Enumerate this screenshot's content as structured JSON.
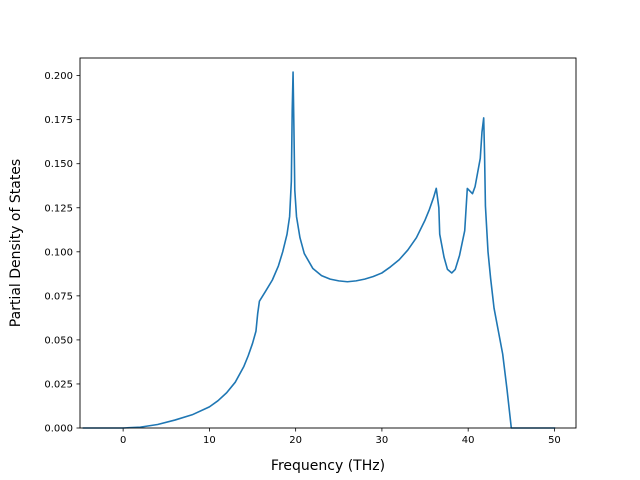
{
  "chart_data": {
    "type": "line",
    "title": "",
    "xlabel": "Frequency (THz)",
    "ylabel": "Partial Density of States",
    "xlim": [
      -5.0,
      52.5
    ],
    "ylim": [
      0.0,
      0.21
    ],
    "xticks": [
      0,
      10,
      20,
      30,
      40,
      50
    ],
    "yticks": [
      0.0,
      0.025,
      0.05,
      0.075,
      0.1,
      0.125,
      0.15,
      0.175,
      0.2
    ],
    "xtick_labels": [
      "0",
      "10",
      "20",
      "30",
      "40",
      "50"
    ],
    "ytick_labels": [
      "0.000",
      "0.025",
      "0.050",
      "0.075",
      "0.100",
      "0.125",
      "0.150",
      "0.175",
      "0.200"
    ],
    "grid": false,
    "legend": null,
    "color": "#1f77b4",
    "series": [
      {
        "x": [
          -4.6,
          -2,
          0,
          2,
          4,
          6,
          8,
          10,
          11,
          12,
          13,
          14,
          14.5,
          15,
          15.4,
          15.6,
          15.8,
          16.5,
          17.3,
          18.0,
          18.5,
          19.0,
          19.3,
          19.5,
          19.6,
          19.7,
          19.8,
          19.9,
          20.1,
          20.5,
          21.0,
          22.0,
          23.0,
          24.0,
          25.0,
          26.0,
          27.0,
          28.0,
          29.0,
          30.0,
          31.0,
          32.0,
          33.0,
          34.0,
          35.0,
          35.5,
          36.0,
          36.3,
          36.6,
          36.7,
          37.2,
          37.6,
          38.1,
          38.5,
          39.0,
          39.6,
          39.9,
          40.1,
          40.5,
          40.8,
          41.1,
          41.4,
          41.6,
          41.8,
          41.9,
          42.0,
          42.3,
          42.6,
          43.0,
          43.5,
          44.0,
          44.5,
          45.0,
          45.3,
          45.6,
          47.0,
          50.0
        ],
        "y": [
          0.0,
          0.0,
          0.0,
          0.0005,
          0.002,
          0.0045,
          0.0075,
          0.012,
          0.0155,
          0.02,
          0.026,
          0.035,
          0.041,
          0.048,
          0.055,
          0.065,
          0.072,
          0.0775,
          0.084,
          0.092,
          0.1,
          0.11,
          0.12,
          0.14,
          0.18,
          0.202,
          0.17,
          0.135,
          0.12,
          0.108,
          0.099,
          0.0905,
          0.0865,
          0.0845,
          0.0835,
          0.083,
          0.0835,
          0.0845,
          0.086,
          0.088,
          0.0915,
          0.0955,
          0.101,
          0.108,
          0.118,
          0.124,
          0.131,
          0.136,
          0.125,
          0.11,
          0.097,
          0.09,
          0.088,
          0.09,
          0.098,
          0.112,
          0.136,
          0.135,
          0.133,
          0.137,
          0.145,
          0.153,
          0.168,
          0.176,
          0.155,
          0.126,
          0.1,
          0.085,
          0.068,
          0.055,
          0.042,
          0.022,
          0.0,
          0.0,
          0.0,
          0.0,
          0.0
        ]
      }
    ]
  }
}
